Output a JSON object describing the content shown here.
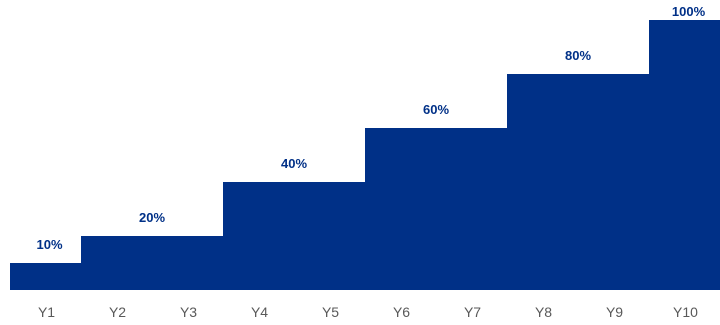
{
  "chart_data": {
    "type": "area",
    "shape": "step",
    "categories": [
      "Y1",
      "Y2",
      "Y3",
      "Y4",
      "Y5",
      "Y6",
      "Y7",
      "Y8",
      "Y9",
      "Y10"
    ],
    "values": [
      10,
      20,
      20,
      40,
      40,
      60,
      60,
      80,
      80,
      100
    ],
    "data_labels": [
      {
        "category": "Y1",
        "text": "10%"
      },
      {
        "category": "Y2",
        "text": "20%"
      },
      {
        "category": "Y4",
        "text": "40%"
      },
      {
        "category": "Y6",
        "text": "60%"
      },
      {
        "category": "Y8",
        "text": "80%"
      },
      {
        "category": "Y10",
        "text": "100%"
      }
    ],
    "ylim": [
      0,
      100
    ],
    "grid": false,
    "legend": "none",
    "colors": {
      "fill": "#003087",
      "label": "#003087",
      "tick": "#595959"
    }
  }
}
